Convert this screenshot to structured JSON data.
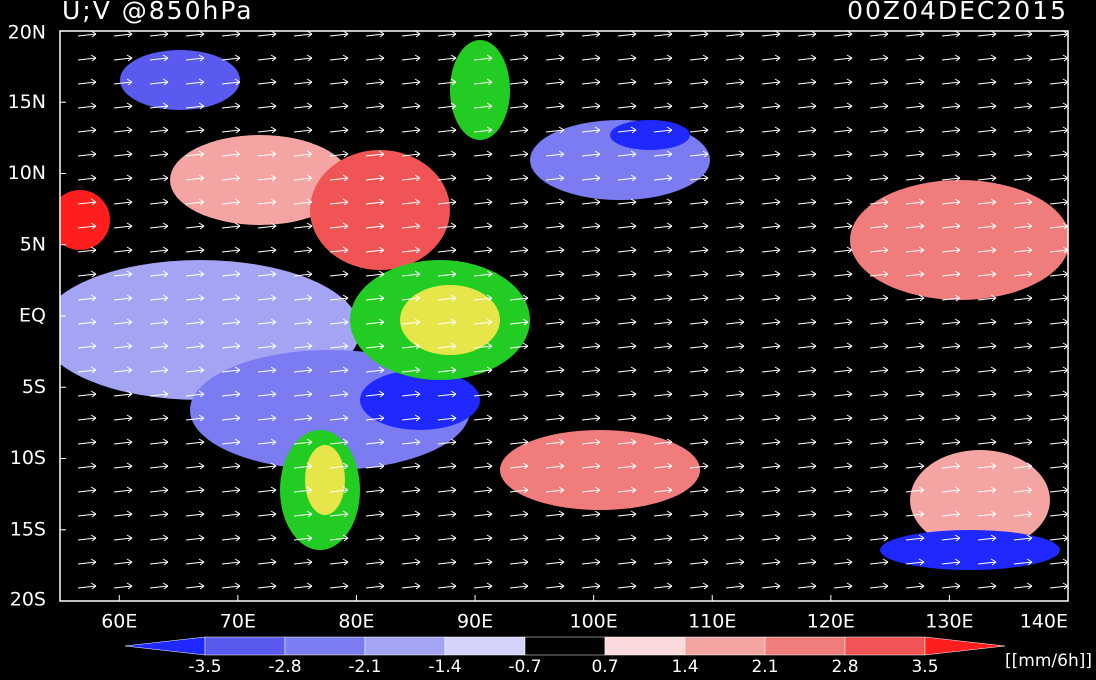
{
  "chart_data": {
    "type": "contour_map",
    "title": "U;V @850hPa",
    "date": "00Z04DEC2015",
    "xlim": [
      55,
      140
    ],
    "ylim": [
      -20,
      20
    ],
    "xticks": [
      {
        "value": 60,
        "label": "60E"
      },
      {
        "value": 70,
        "label": "70E"
      },
      {
        "value": 80,
        "label": "80E"
      },
      {
        "value": 90,
        "label": "90E"
      },
      {
        "value": 100,
        "label": "100E"
      },
      {
        "value": 110,
        "label": "110E"
      },
      {
        "value": 120,
        "label": "120E"
      },
      {
        "value": 130,
        "label": "130E"
      },
      {
        "value": 140,
        "label": "140E"
      }
    ],
    "yticks": [
      {
        "value": -20,
        "label": "20S"
      },
      {
        "value": -15,
        "label": "15S"
      },
      {
        "value": -10,
        "label": "10S"
      },
      {
        "value": -5,
        "label": "5S"
      },
      {
        "value": 0,
        "label": "EQ"
      },
      {
        "value": 5,
        "label": "5N"
      },
      {
        "value": 10,
        "label": "10N"
      },
      {
        "value": 15,
        "label": "15N"
      },
      {
        "value": 20,
        "label": "20N"
      }
    ],
    "colorbar": {
      "levels": [
        -3.5,
        -2.8,
        -2.1,
        -1.4,
        -0.7,
        0.7,
        1.4,
        2.1,
        2.8,
        3.5
      ],
      "colors": [
        "#1e28ff",
        "#5a5af0",
        "#7c7cf2",
        "#a4a4f4",
        "#d4d4fa",
        "#000000",
        "#fadada",
        "#f5a4a4",
        "#f07c7c",
        "#f05454",
        "#ff1e1e"
      ],
      "unit": "[[mm/6h]]"
    }
  }
}
